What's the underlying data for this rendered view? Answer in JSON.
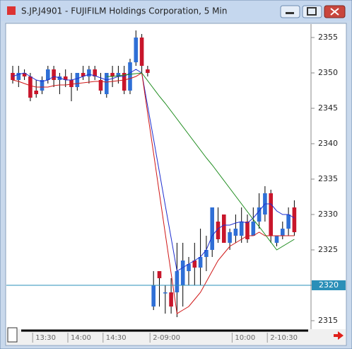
{
  "window": {
    "title": "S.JP.J4901 - FUJIFILM Holdings Corporation, 5 Min"
  },
  "chart_data": {
    "type": "candlestick",
    "categories": [
      null,
      null,
      null,
      null,
      "13:30",
      null,
      null,
      null,
      null,
      null,
      "14:00",
      null,
      null,
      null,
      null,
      null,
      "14:30",
      null,
      null,
      null,
      null,
      null,
      null,
      null,
      "2-09:00",
      null,
      null,
      null,
      null,
      null,
      null,
      null,
      null,
      null,
      null,
      null,
      null,
      null,
      "10:00",
      null,
      null,
      null,
      null,
      null,
      "2-10:30",
      null,
      null,
      null,
      null
    ],
    "open": [
      2350,
      2349,
      2350,
      2349.5,
      2347.5,
      2347.5,
      2349,
      2350.5,
      2349,
      2349.5,
      2349,
      2348,
      2350,
      2349.5,
      2350.5,
      2349,
      2347,
      2350,
      2349.5,
      2350,
      2347.5,
      2351.5,
      2355,
      2350.5,
      2317,
      2322,
      2319,
      2319,
      2319,
      2320,
      2322,
      2323.5,
      2322.5,
      2324,
      2325,
      2329,
      2330,
      2326,
      2327,
      2327,
      2329,
      2327,
      2329,
      2330,
      2333,
      2326,
      2327,
      2328,
      2331
    ],
    "high": [
      2351,
      2351,
      2350.5,
      2350,
      2349,
      2349.5,
      2351,
      2351,
      2350,
      2350.5,
      2350,
      2350,
      2351,
      2351,
      2351,
      2350,
      2350,
      2351,
      2351,
      2351,
      2352,
      2356,
      2355.5,
      2351,
      2322,
      2322,
      2320,
      2321,
      2326,
      2326,
      2324,
      2326,
      2328,
      2327,
      2331,
      2331,
      2330,
      2328,
      2330,
      2331,
      2330,
      2331,
      2333,
      2334,
      2333.5,
      2327,
      2329,
      2331,
      2332
    ],
    "low": [
      2348.5,
      2348,
      2349,
      2346,
      2346.5,
      2347,
      2348.5,
      2348,
      2347,
      2348,
      2346,
      2347.5,
      2349,
      2348.5,
      2349,
      2347,
      2346.5,
      2348,
      2348.5,
      2347,
      2347,
      2351,
      2350,
      2349.5,
      2316.5,
      2317,
      2316,
      2316,
      2315.5,
      2317,
      2320,
      2320,
      2320,
      2322,
      2324,
      2326,
      2326,
      2325,
      2326,
      2326,
      2326,
      2327,
      2328,
      2329,
      2326,
      2325.5,
      2326.5,
      2327,
      2327
    ],
    "close": [
      2349,
      2350,
      2349.5,
      2346.5,
      2347,
      2349,
      2350.5,
      2349,
      2349.5,
      2349,
      2348,
      2350,
      2349.5,
      2350.5,
      2349.5,
      2347.5,
      2350,
      2349.5,
      2350,
      2347.5,
      2351.5,
      2355,
      2351,
      2350,
      2320,
      2321,
      2319,
      2317,
      2322,
      2323.5,
      2323,
      2322.5,
      2324,
      2325,
      2331,
      2326.5,
      2326,
      2327.5,
      2328,
      2329,
      2326.5,
      2329,
      2331,
      2333,
      2327,
      2327,
      2328,
      2330,
      2327.5
    ],
    "up_color": "#2f6fd6",
    "down_color": "#c8162b",
    "series": [
      {
        "color": "#1f2fd0",
        "values": [
          2349.5,
          2349.8,
          2350,
          2349.5,
          2349,
          2348.8,
          2349,
          2349.5,
          2349.3,
          2349,
          2349,
          2349.2,
          2349.5,
          2349.8,
          2349.6,
          2349.3,
          2349,
          2349.2,
          2349.5,
          2349.5,
          2350,
          2350.5,
          2350,
          2345.3,
          2340.7,
          2336,
          2331.3,
          2326.7,
          2322,
          2322.5,
          2323,
          2323.5,
          2324,
          2325,
          2327,
          2328,
          2328.5,
          2328.5,
          2328.8,
          2329,
          2328.8,
          2329.5,
          2330.5,
          2331.5,
          2331.5,
          2330.5,
          2330,
          2330,
          2329.5
        ]
      },
      {
        "color": "#d01818",
        "values": [
          2349,
          2348.8,
          2348.5,
          2348.2,
          2348,
          2348,
          2348,
          2348.2,
          2348.3,
          2348.3,
          2348.4,
          2348.5,
          2348.6,
          2348.7,
          2348.8,
          2348.8,
          2348.7,
          2348.8,
          2348.9,
          2349,
          2349.2,
          2349.5,
          2350,
          2344.3,
          2338.7,
          2333,
          2327.3,
          2321.7,
          2316,
          2316.5,
          2317,
          2318,
          2319,
          2320.5,
          2322,
          2323.5,
          2324.5,
          2325.5,
          2326,
          2326.5,
          2327,
          2327,
          2327.5,
          2327,
          2327,
          2327,
          2327,
          2327,
          2327
        ]
      },
      {
        "color": "#1a8a1a",
        "values": [
          null,
          null,
          null,
          null,
          null,
          null,
          null,
          null,
          null,
          null,
          null,
          null,
          null,
          null,
          null,
          null,
          2349.5,
          2349.5,
          2349.6,
          2349.7,
          2349.8,
          2349.9,
          2350,
          2348.9,
          2347.8,
          2346.7,
          2345.7,
          2344.6,
          2343.5,
          2342.4,
          2341.3,
          2340.2,
          2339.1,
          2338,
          2337,
          2335.9,
          2334.8,
          2333.7,
          2332.6,
          2331.5,
          2330.4,
          2329.3,
          2328.3,
          2327.2,
          2326.1,
          2325,
          2325.5,
          2326,
          2326.5
        ]
      }
    ],
    "current_price": 2320,
    "current_color": "#2a8fb8",
    "ylim": [
      2313.8,
      2356.5
    ],
    "yticks": [
      2315,
      2320,
      2325,
      2330,
      2335,
      2340,
      2345,
      2350,
      2355
    ]
  }
}
